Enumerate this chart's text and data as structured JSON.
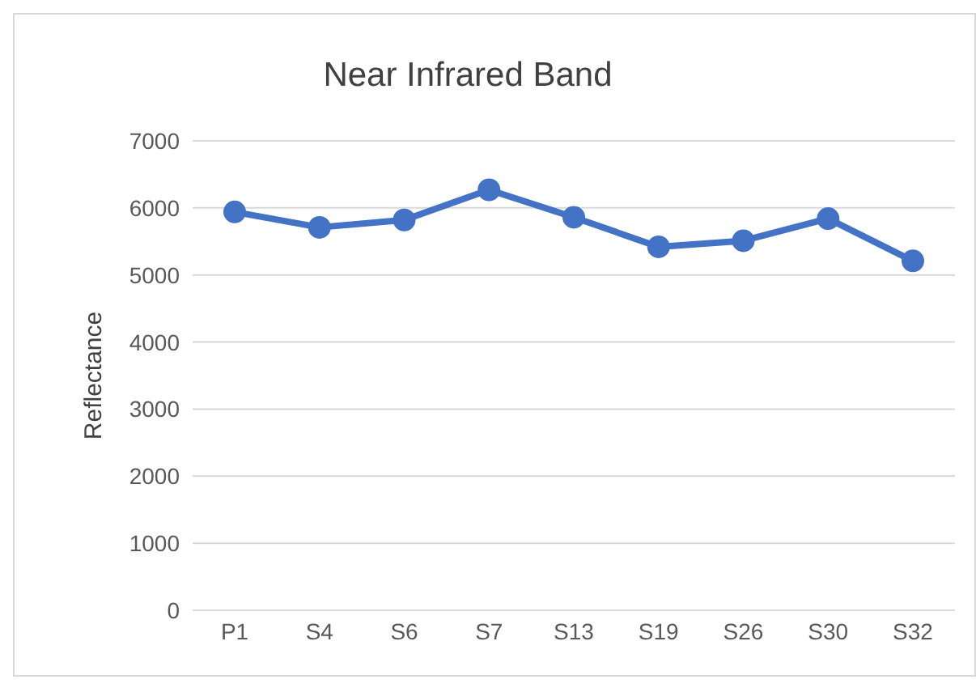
{
  "chart_data": {
    "type": "line",
    "title": "Near Infrared Band",
    "ylabel": "Reflectance",
    "categories": [
      "P1",
      "S4",
      "S6",
      "S7",
      "S13",
      "S19",
      "S26",
      "S30",
      "S32"
    ],
    "series": [
      {
        "color": "#4472c4",
        "values": [
          5940,
          5710,
          5820,
          6270,
          5860,
          5420,
          5510,
          5840,
          5210
        ]
      }
    ],
    "ylim": [
      0,
      7000
    ],
    "yticks": [
      0,
      1000,
      2000,
      3000,
      4000,
      5000,
      6000,
      7000
    ],
    "grid": "y",
    "legend": false,
    "marker": "circle",
    "line_style": "solid"
  }
}
